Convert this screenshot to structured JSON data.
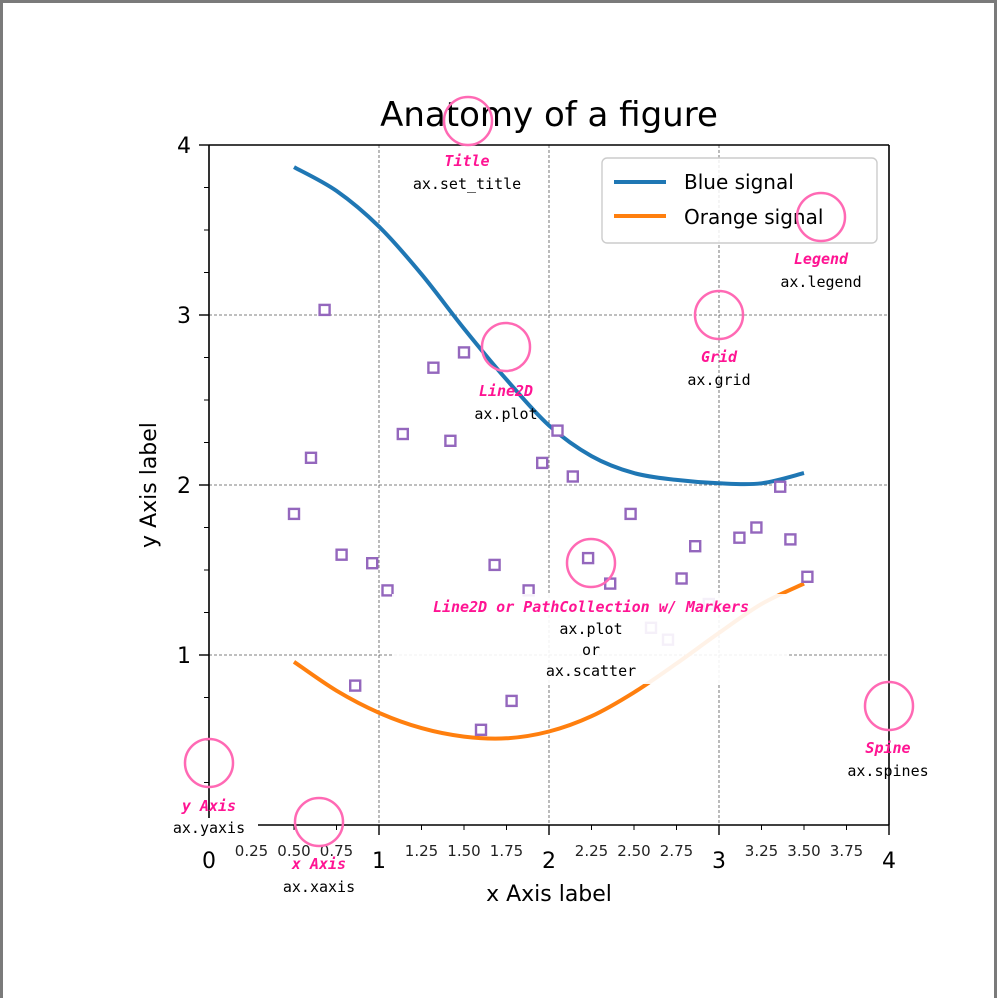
{
  "chart_data": {
    "type": "line",
    "title": "Anatomy of a figure",
    "xlabel": "x Axis label",
    "ylabel": "y Axis label",
    "xlim": [
      0,
      4
    ],
    "ylim": [
      0,
      4
    ],
    "x_major_ticks": [
      "0",
      "1",
      "2",
      "3",
      "4"
    ],
    "x_minor_ticks": [
      "0.25",
      "0.50",
      "0.75",
      "1.25",
      "1.50",
      "1.75",
      "2.25",
      "2.50",
      "2.75",
      "3.25",
      "3.50",
      "3.75"
    ],
    "y_major_ticks": [
      "1",
      "2",
      "3",
      "4"
    ],
    "grid": true,
    "legend_position": "top-right",
    "series": [
      {
        "name": "Blue signal",
        "color": "#1f77b4",
        "x": [
          0.5,
          0.75,
          1.0,
          1.25,
          1.5,
          1.75,
          2.0,
          2.25,
          2.5,
          2.75,
          3.0,
          3.25,
          3.5
        ],
        "y": [
          3.87,
          3.73,
          3.52,
          3.24,
          2.92,
          2.62,
          2.35,
          2.17,
          2.07,
          2.03,
          2.01,
          2.01,
          2.07
        ]
      },
      {
        "name": "Orange signal",
        "color": "#ff7f0e",
        "x": [
          0.5,
          0.75,
          1.0,
          1.25,
          1.5,
          1.75,
          2.0,
          2.25,
          2.5,
          2.75,
          3.0,
          3.25,
          3.5
        ],
        "y": [
          0.96,
          0.79,
          0.66,
          0.57,
          0.52,
          0.51,
          0.55,
          0.64,
          0.78,
          0.95,
          1.13,
          1.3,
          1.42
        ]
      }
    ],
    "markers": {
      "color": "#9467bd",
      "x": [
        0.5,
        0.6,
        0.68,
        0.78,
        0.86,
        0.96,
        1.05,
        1.14,
        1.32,
        1.42,
        1.5,
        1.6,
        1.68,
        1.78,
        1.88,
        1.96,
        2.05,
        2.14,
        2.23,
        2.36,
        2.48,
        2.6,
        2.7,
        2.78,
        2.86,
        2.94,
        3.12,
        3.22,
        3.42,
        3.36,
        3.52
      ],
      "y": [
        1.83,
        2.16,
        3.03,
        1.59,
        0.82,
        1.54,
        1.38,
        2.3,
        2.69,
        2.26,
        2.78,
        0.56,
        1.53,
        0.73,
        1.38,
        2.13,
        2.32,
        2.05,
        1.57,
        1.42,
        1.83,
        1.16,
        1.09,
        1.45,
        1.64,
        1.3,
        1.69,
        1.75,
        1.68,
        1.99,
        1.46
      ]
    }
  },
  "annotations": [
    {
      "title": "Title",
      "code": "ax.set_title"
    },
    {
      "title": "Legend",
      "code": "ax.legend"
    },
    {
      "title": "Grid",
      "code": "ax.grid"
    },
    {
      "title": "Line2D",
      "code": "ax.plot"
    },
    {
      "title": "Line2D or PathCollection w/ Markers",
      "code1": "ax.plot",
      "code2": "or",
      "code3": "ax.scatter"
    },
    {
      "title": "Spine",
      "code": "ax.spines"
    },
    {
      "title": "y Axis",
      "code": "ax.yaxis"
    },
    {
      "title": "x Axis",
      "code": "ax.xaxis"
    }
  ],
  "colors": {
    "annotation": "#ff1493",
    "circle": "#ff69b4",
    "grid": "#555555"
  }
}
